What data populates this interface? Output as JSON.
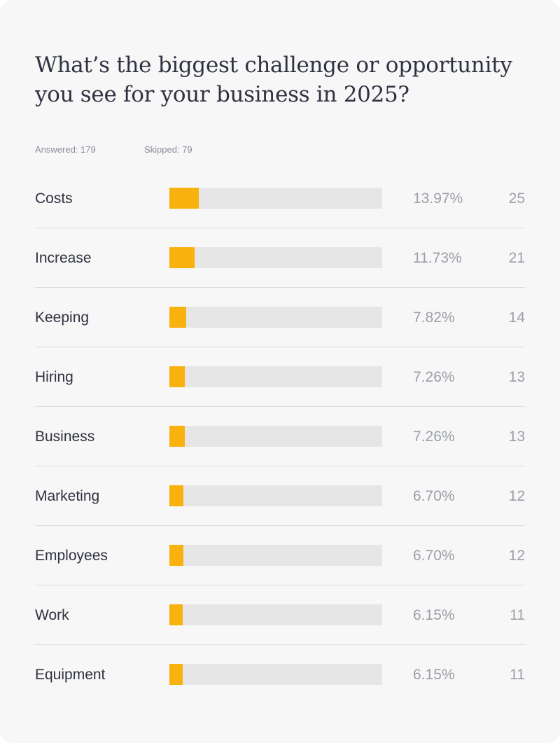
{
  "card": {
    "title": "What’s the biggest challenge or opportunity you see for your business in 2025?",
    "answered": "Answered: 179",
    "skipped": "Skipped: 79"
  },
  "colors": {
    "bar_fill": "#f9b10d",
    "bar_track": "#e6e6e6",
    "card_background": "#f7f7f7"
  },
  "chart_data": {
    "type": "bar",
    "orientation": "horizontal",
    "title": "What’s the biggest challenge or opportunity you see for your business in 2025?",
    "xlim": [
      0,
      100
    ],
    "grid": false,
    "categories": [
      "Costs",
      "Increase",
      "Keeping",
      "Hiring",
      "Business",
      "Marketing",
      "Employees",
      "Work",
      "Equipment"
    ],
    "values": [
      13.97,
      11.73,
      7.82,
      7.26,
      7.26,
      6.7,
      6.7,
      6.15,
      6.15
    ],
    "percent_labels": [
      "13.97%",
      "11.73%",
      "7.82%",
      "7.26%",
      "7.26%",
      "6.70%",
      "6.70%",
      "6.15%",
      "6.15%"
    ],
    "counts": [
      "25",
      "21",
      "14",
      "13",
      "13",
      "12",
      "12",
      "11",
      "11"
    ]
  }
}
